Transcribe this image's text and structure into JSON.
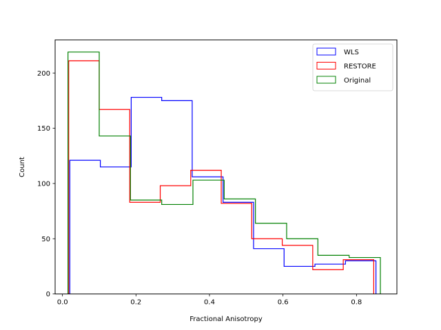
{
  "chart_data": {
    "type": "histogram-step",
    "title": "",
    "xlabel": "Fractional Anisotropy",
    "ylabel": "Count",
    "xlim": [
      -0.02,
      0.91
    ],
    "ylim": [
      0,
      230
    ],
    "xticks": [
      0.0,
      0.2,
      0.4,
      0.6,
      0.8
    ],
    "xtick_labels": [
      "0.0",
      "0.2",
      "0.4",
      "0.6",
      "0.8"
    ],
    "yticks": [
      0,
      50,
      100,
      150,
      200
    ],
    "ytick_labels": [
      "0",
      "50",
      "100",
      "150",
      "200"
    ],
    "legend_position": "upper-right",
    "series": [
      {
        "name": "WLS",
        "color": "#0000ff",
        "edges": [
          0.02,
          0.103,
          0.187,
          0.27,
          0.353,
          0.437,
          0.52,
          0.603,
          0.687,
          0.77,
          0.853
        ],
        "counts": [
          121,
          115,
          178,
          175,
          106,
          83,
          41,
          25,
          27,
          30
        ]
      },
      {
        "name": "RESTORE",
        "color": "#ff0000",
        "edges": [
          0.017,
          0.1,
          0.183,
          0.266,
          0.349,
          0.432,
          0.515,
          0.598,
          0.681,
          0.764,
          0.847
        ],
        "counts": [
          211,
          167,
          83,
          98,
          112,
          82,
          50,
          44,
          22,
          31
        ]
      },
      {
        "name": "Original",
        "color": "#008000",
        "edges": [
          0.015,
          0.1,
          0.185,
          0.27,
          0.355,
          0.44,
          0.525,
          0.61,
          0.695,
          0.78,
          0.865
        ],
        "counts": [
          219,
          143,
          85,
          81,
          103,
          86,
          64,
          50,
          35,
          33
        ]
      }
    ]
  }
}
